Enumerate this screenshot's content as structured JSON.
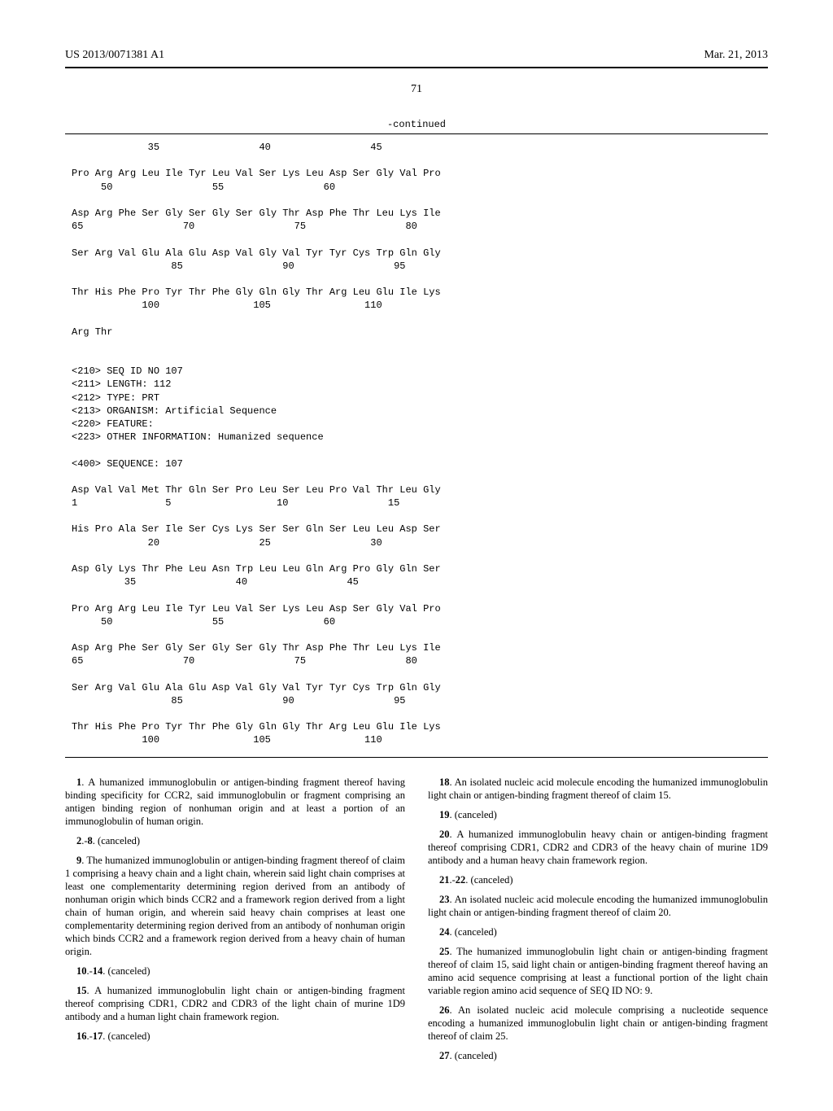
{
  "header": {
    "pub_number": "US 2013/0071381 A1",
    "pub_date": "Mar. 21, 2013"
  },
  "page_number": "71",
  "continued_label": "-continued",
  "seq_listing": "             35                 40                 45\n\nPro Arg Arg Leu Ile Tyr Leu Val Ser Lys Leu Asp Ser Gly Val Pro\n     50                 55                 60\n\nAsp Arg Phe Ser Gly Ser Gly Ser Gly Thr Asp Phe Thr Leu Lys Ile\n65                 70                 75                 80\n\nSer Arg Val Glu Ala Glu Asp Val Gly Val Tyr Tyr Cys Trp Gln Gly\n                 85                 90                 95\n\nThr His Phe Pro Tyr Thr Phe Gly Gln Gly Thr Arg Leu Glu Ile Lys\n            100                105                110\n\nArg Thr\n\n\n<210> SEQ ID NO 107\n<211> LENGTH: 112\n<212> TYPE: PRT\n<213> ORGANISM: Artificial Sequence\n<220> FEATURE:\n<223> OTHER INFORMATION: Humanized sequence\n\n<400> SEQUENCE: 107\n\nAsp Val Val Met Thr Gln Ser Pro Leu Ser Leu Pro Val Thr Leu Gly\n1               5                  10                 15\n\nHis Pro Ala Ser Ile Ser Cys Lys Ser Ser Gln Ser Leu Leu Asp Ser\n             20                 25                 30\n\nAsp Gly Lys Thr Phe Leu Asn Trp Leu Leu Gln Arg Pro Gly Gln Ser\n         35                 40                 45\n\nPro Arg Arg Leu Ile Tyr Leu Val Ser Lys Leu Asp Ser Gly Val Pro\n     50                 55                 60\n\nAsp Arg Phe Ser Gly Ser Gly Ser Gly Thr Asp Phe Thr Leu Lys Ile\n65                 70                 75                 80\n\nSer Arg Val Glu Ala Glu Asp Val Gly Val Tyr Tyr Cys Trp Gln Gly\n                 85                 90                 95\n\nThr His Phe Pro Tyr Thr Phe Gly Gln Gly Thr Arg Leu Glu Ile Lys\n            100                105                110",
  "claims": {
    "c1": "1. A humanized immunoglobulin or antigen-binding fragment thereof having binding specificity for CCR2, said immunoglobulin or fragment comprising an antigen binding region of nonhuman origin and at least a portion of an immunoglobulin of human origin.",
    "c2_8": "2.-8. (canceled)",
    "c9": "9. The humanized immunoglobulin or antigen-binding fragment thereof of claim 1 comprising a heavy chain and a light chain, wherein said light chain comprises at least one complementarity determining region derived from an antibody of nonhuman origin which binds CCR2 and a framework region derived from a light chain of human origin, and wherein said heavy chain comprises at least one complementarity determining region derived from an antibody of nonhuman origin which binds CCR2 and a framework region derived from a heavy chain of human origin.",
    "c10_14": "10.-14. (canceled)",
    "c15": "15. A humanized immunoglobulin light chain or antigen-binding fragment thereof comprising CDR1, CDR2 and CDR3 of the light chain of murine 1D9 antibody and a human light chain framework region.",
    "c16_17": "16.-17. (canceled)",
    "c18": "18. An isolated nucleic acid molecule encoding the humanized immunoglobulin light chain or antigen-binding fragment thereof of claim 15.",
    "c19": "19. (canceled)",
    "c20": "20. A humanized immunoglobulin heavy chain or antigen-binding fragment thereof comprising CDR1, CDR2 and CDR3 of the heavy chain of murine 1D9 antibody and a human heavy chain framework region.",
    "c21_22": "21.-22. (canceled)",
    "c23": "23. An isolated nucleic acid molecule encoding the humanized immunoglobulin light chain or antigen-binding fragment thereof of claim 20.",
    "c24": "24. (canceled)",
    "c25": "25. The humanized immunoglobulin light chain or antigen-binding fragment thereof of claim 15, said light chain or antigen-binding fragment thereof having an amino acid sequence comprising at least a functional portion of the light chain variable region amino acid sequence of SEQ ID NO: 9.",
    "c26": "26. An isolated nucleic acid molecule comprising a nucleotide sequence encoding a humanized immunoglobulin light chain or antigen-binding fragment thereof of claim 25.",
    "c27": "27. (canceled)"
  }
}
